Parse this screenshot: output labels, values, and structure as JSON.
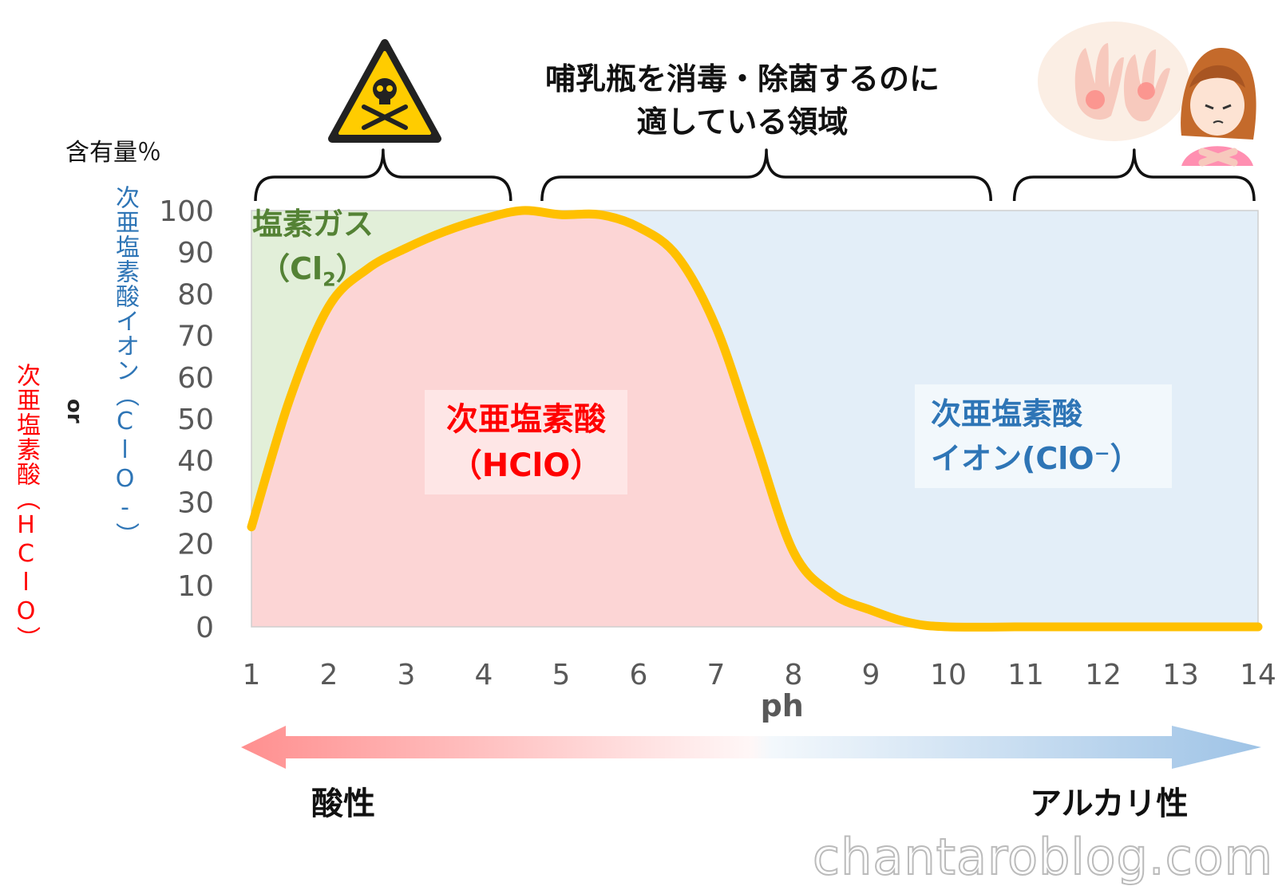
{
  "title": {
    "line1": "哺乳瓶を消毒・除菌するのに",
    "line2": "適している領域"
  },
  "y_axis": {
    "unit_label": "含有量％",
    "blue_label": "次亜塩素酸イオン（ClO-）",
    "or_label": "or",
    "red_label": "次亜塩素酸（HClO）"
  },
  "region_labels": {
    "chlorine_gas_line1": "塩素ガス",
    "chlorine_gas_line2": "（Cl",
    "chlorine_gas_sub": "2",
    "chlorine_gas_close": "）",
    "hclo_line1": "次亜塩素酸",
    "hclo_line2": "（HClO）",
    "clo_line1": "次亜塩素酸",
    "clo_line2": "イオン(ClO⁻）"
  },
  "arrow": {
    "acid_label": "酸性",
    "alkaline_label": "アルカリ性"
  },
  "watermark": "chantaroblog.com",
  "colors": {
    "chlorine_gas": "#e2efd9",
    "hclo": "#fcd5d5",
    "clo": "#e3eef8",
    "curve": "#ffc000",
    "red_text": "#ff0000",
    "blue_text": "#2e75b6",
    "green_text": "#548235",
    "tick_text": "#595959"
  },
  "icons": [
    "warning-skull-icon",
    "hand-rash-girl-icon"
  ],
  "chart_data": {
    "type": "area",
    "xlabel": "ph",
    "ylabel": "含有量％",
    "x_ticks": [
      1,
      2,
      3,
      4,
      5,
      6,
      7,
      8,
      9,
      10,
      11,
      12,
      13,
      14
    ],
    "y_ticks": [
      0,
      10,
      20,
      30,
      40,
      50,
      60,
      70,
      80,
      90,
      100
    ],
    "xlim": [
      1,
      14
    ],
    "ylim": [
      0,
      100
    ],
    "grid": false,
    "series": [
      {
        "name": "塩素ガス（Cl2）",
        "x": [
          1,
          1.5,
          2,
          2.5,
          3,
          3.5,
          4,
          4.5
        ],
        "values": [
          76,
          45,
          23,
          14,
          9,
          5,
          2,
          0
        ]
      },
      {
        "name": "次亜塩素酸（HClO）",
        "x": [
          1,
          1.5,
          2,
          2.5,
          3,
          3.5,
          4,
          4.5,
          5,
          5.5,
          6,
          6.5,
          7,
          7.5,
          8,
          8.5,
          9,
          9.5,
          10,
          11,
          12,
          13,
          14
        ],
        "values": [
          24,
          55,
          77,
          86,
          91,
          95,
          98,
          100,
          99,
          99,
          96,
          89,
          72,
          45,
          18,
          8,
          4,
          1,
          0,
          0,
          0,
          0,
          0
        ]
      },
      {
        "name": "次亜塩素酸イオン（ClO-）",
        "x": [
          4.5,
          5,
          5.5,
          6,
          6.5,
          7,
          7.5,
          8,
          8.5,
          9,
          9.5,
          10,
          11,
          12,
          13,
          14
        ],
        "values": [
          0,
          1,
          1,
          4,
          11,
          28,
          55,
          82,
          92,
          96,
          99,
          100,
          100,
          100,
          100,
          100
        ]
      }
    ],
    "brackets": [
      {
        "from_ph": 1,
        "to_ph": 4.4,
        "meaning": "warning"
      },
      {
        "from_ph": 4.7,
        "to_ph": 10.6,
        "meaning": "suitable"
      },
      {
        "from_ph": 10.8,
        "to_ph": 14,
        "meaning": "skin irritation"
      }
    ]
  }
}
